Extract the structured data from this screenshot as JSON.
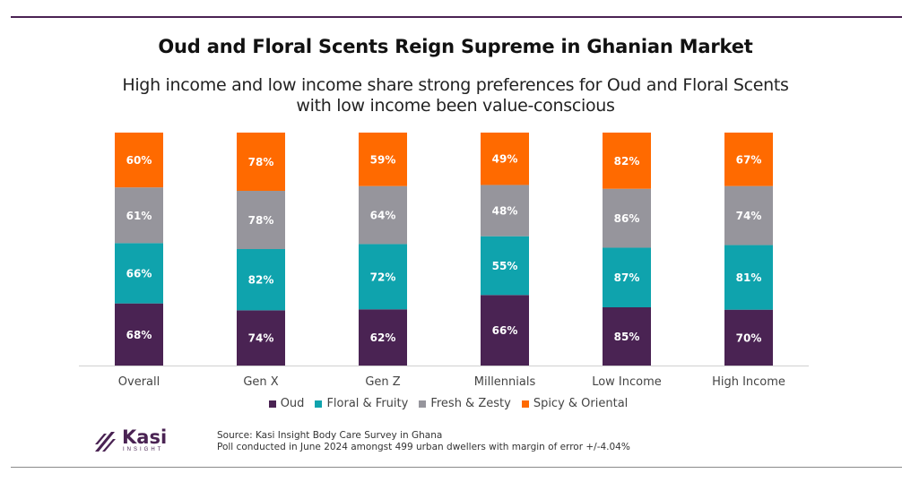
{
  "header": {
    "title": "Oud and Floral Scents Reign Supreme in Ghanian Market",
    "subtitle": "High income and low income share strong preferences for Oud and Floral Scents with low income been value-conscious"
  },
  "chart_data": {
    "type": "bar",
    "stacked": true,
    "normalized": true,
    "categories": [
      "Overall",
      "Gen X",
      "Gen Z",
      "Millennials",
      "Low Income",
      "High Income"
    ],
    "series": [
      {
        "name": "Oud",
        "color": "#4a2353",
        "values": [
          68,
          74,
          62,
          66,
          85,
          70
        ]
      },
      {
        "name": "Floral & Fruity",
        "color": "#0fa3ad",
        "values": [
          66,
          82,
          72,
          55,
          87,
          81
        ]
      },
      {
        "name": "Fresh & Zesty",
        "color": "#96959c",
        "values": [
          61,
          78,
          64,
          48,
          86,
          74
        ]
      },
      {
        "name": "Spicy & Oriental",
        "color": "#ff6a00",
        "values": [
          60,
          78,
          59,
          49,
          82,
          67
        ]
      }
    ],
    "value_suffix": "%",
    "legend_position": "bottom",
    "grid": false
  },
  "footer": {
    "source_line1": "Source: Kasi Insight Body Care Survey in Ghana",
    "source_line2": "Poll conducted in June 2024 amongst 499 urban dwellers with margin of error +/-4.04%",
    "logo_name": "Kasi",
    "logo_sub": "INSIGHT"
  }
}
